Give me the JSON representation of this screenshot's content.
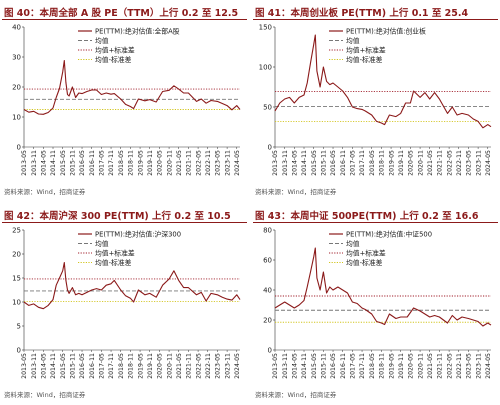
{
  "source_label": "资料来源：Wind，招商证券",
  "colors": {
    "title": "#8b1a1a",
    "pe_line": "#8b1a1a",
    "mean_line": "#777777",
    "plus_sd_line": "#a01e2a",
    "minus_sd_line": "#d2c51e"
  },
  "chart_data": [
    {
      "type": "line",
      "title": "图 40：本周全部 A 股 PE（TTM）上行 0.2 至 12.5",
      "x_ticks": [
        "2013-05",
        "2013-11",
        "2014-05",
        "2014-11",
        "2015-05",
        "2015-11",
        "2016-05",
        "2016-11",
        "2017-05",
        "2017-11",
        "2018-05",
        "2018-11",
        "2019-05",
        "2019-11",
        "2020-05",
        "2020-11",
        "2021-05",
        "2021-11",
        "2022-05",
        "2022-11",
        "2023-05",
        "2023-11",
        "2024-05"
      ],
      "ylim": [
        0,
        40
      ],
      "y_ticks": [
        0,
        10,
        20,
        30,
        40
      ],
      "legend": [
        "PE(TTM):绝对估值:全部A股",
        "均值",
        "均值+标准差",
        "均值-标准差"
      ],
      "mean": 15.9,
      "plus_sd": 19.3,
      "minus_sd": 12.5,
      "pe_points": [
        [
          "2013-05",
          12.5
        ],
        [
          "2013-08",
          11.6
        ],
        [
          "2013-11",
          11.9
        ],
        [
          "2014-02",
          11.0
        ],
        [
          "2014-05",
          10.9
        ],
        [
          "2014-08",
          11.5
        ],
        [
          "2014-11",
          13.0
        ],
        [
          "2015-01",
          16.5
        ],
        [
          "2015-03",
          19.5
        ],
        [
          "2015-05",
          25.0
        ],
        [
          "2015-06",
          28.8
        ],
        [
          "2015-07",
          21.5
        ],
        [
          "2015-08",
          17.5
        ],
        [
          "2015-09",
          17.0
        ],
        [
          "2015-11",
          20.0
        ],
        [
          "2016-01",
          16.5
        ],
        [
          "2016-03",
          18.0
        ],
        [
          "2016-05",
          17.8
        ],
        [
          "2016-08",
          18.5
        ],
        [
          "2016-11",
          19.0
        ],
        [
          "2017-02",
          19.0
        ],
        [
          "2017-05",
          17.5
        ],
        [
          "2017-08",
          18.0
        ],
        [
          "2017-11",
          17.6
        ],
        [
          "2018-01",
          17.8
        ],
        [
          "2018-05",
          16.0
        ],
        [
          "2018-08",
          14.2
        ],
        [
          "2018-11",
          13.5
        ],
        [
          "2019-01",
          12.8
        ],
        [
          "2019-04",
          16.0
        ],
        [
          "2019-08",
          15.4
        ],
        [
          "2019-11",
          15.8
        ],
        [
          "2020-03",
          15.0
        ],
        [
          "2020-07",
          18.5
        ],
        [
          "2020-11",
          18.9
        ],
        [
          "2021-02",
          20.4
        ],
        [
          "2021-05",
          19.3
        ],
        [
          "2021-08",
          18.0
        ],
        [
          "2021-11",
          18.0
        ],
        [
          "2022-04",
          15.2
        ],
        [
          "2022-07",
          16.0
        ],
        [
          "2022-10",
          14.6
        ],
        [
          "2023-01",
          15.5
        ],
        [
          "2023-05",
          15.2
        ],
        [
          "2023-08",
          14.5
        ],
        [
          "2023-11",
          13.8
        ],
        [
          "2024-02",
          12.4
        ],
        [
          "2024-05",
          13.8
        ],
        [
          "2024-07",
          12.5
        ]
      ]
    },
    {
      "type": "line",
      "title": "图 41：本周创业板 PE(TTM) 上行 0.1 至 25.4",
      "x_ticks": [
        "2013-05",
        "2013-11",
        "2014-05",
        "2014-11",
        "2015-05",
        "2015-11",
        "2016-05",
        "2016-11",
        "2017-05",
        "2017-11",
        "2018-05",
        "2018-11",
        "2019-05",
        "2019-11",
        "2020-05",
        "2020-11",
        "2021-05",
        "2021-11",
        "2022-05",
        "2022-11",
        "2023-05",
        "2023-11",
        "2024-05"
      ],
      "ylim": [
        0,
        150
      ],
      "y_ticks": [
        0,
        50,
        100,
        150
      ],
      "legend": [
        "PE(TTM):绝对估值:创业板",
        "均值",
        "均值+标准差",
        "均值-标准差"
      ],
      "mean": 50.5,
      "plus_sd": 69.5,
      "minus_sd": 32.0,
      "pe_points": [
        [
          "2013-05",
          45
        ],
        [
          "2013-08",
          55
        ],
        [
          "2013-11",
          60
        ],
        [
          "2014-02",
          62
        ],
        [
          "2014-05",
          55
        ],
        [
          "2014-08",
          62
        ],
        [
          "2014-11",
          65
        ],
        [
          "2015-01",
          80
        ],
        [
          "2015-03",
          105
        ],
        [
          "2015-05",
          128
        ],
        [
          "2015-06",
          140
        ],
        [
          "2015-07",
          95
        ],
        [
          "2015-09",
          75
        ],
        [
          "2015-11",
          100
        ],
        [
          "2016-01",
          82
        ],
        [
          "2016-03",
          78
        ],
        [
          "2016-05",
          80
        ],
        [
          "2016-08",
          75
        ],
        [
          "2016-11",
          70
        ],
        [
          "2017-02",
          62
        ],
        [
          "2017-05",
          50
        ],
        [
          "2017-08",
          48
        ],
        [
          "2017-11",
          47
        ],
        [
          "2018-01",
          45
        ],
        [
          "2018-05",
          40
        ],
        [
          "2018-08",
          32
        ],
        [
          "2018-11",
          30
        ],
        [
          "2019-01",
          28
        ],
        [
          "2019-04",
          40
        ],
        [
          "2019-08",
          38
        ],
        [
          "2019-11",
          42
        ],
        [
          "2020-02",
          55
        ],
        [
          "2020-05",
          55
        ],
        [
          "2020-07",
          70
        ],
        [
          "2020-11",
          62
        ],
        [
          "2021-02",
          68
        ],
        [
          "2021-05",
          60
        ],
        [
          "2021-08",
          68
        ],
        [
          "2021-11",
          60
        ],
        [
          "2022-04",
          42
        ],
        [
          "2022-07",
          50
        ],
        [
          "2022-10",
          40
        ],
        [
          "2023-01",
          42
        ],
        [
          "2023-05",
          40
        ],
        [
          "2023-08",
          35
        ],
        [
          "2023-11",
          32
        ],
        [
          "2024-02",
          24
        ],
        [
          "2024-05",
          28
        ],
        [
          "2024-07",
          25.4
        ]
      ]
    },
    {
      "type": "line",
      "title": "图 42：本周沪深 300 PE(TTM) 上行 0.2 至 10.5",
      "x_ticks": [
        "2013-05",
        "2013-11",
        "2014-05",
        "2014-11",
        "2015-05",
        "2015-11",
        "2016-05",
        "2016-11",
        "2017-05",
        "2017-11",
        "2018-05",
        "2018-11",
        "2019-05",
        "2019-11",
        "2020-05",
        "2020-11",
        "2021-05",
        "2021-11",
        "2022-05",
        "2022-11",
        "2023-05",
        "2023-11",
        "2024-05"
      ],
      "ylim": [
        0,
        25
      ],
      "y_ticks": [
        0,
        5,
        10,
        15,
        20,
        25
      ],
      "legend": [
        "PE(TTM):绝对估值:沪深300",
        "均值",
        "均值+标准差",
        "均值-标准差"
      ],
      "mean": 12.3,
      "plus_sd": 14.8,
      "minus_sd": 10.1,
      "pe_points": [
        [
          "2013-05",
          10.0
        ],
        [
          "2013-08",
          9.3
        ],
        [
          "2013-11",
          9.6
        ],
        [
          "2014-02",
          8.9
        ],
        [
          "2014-05",
          8.6
        ],
        [
          "2014-08",
          9.3
        ],
        [
          "2014-11",
          10.5
        ],
        [
          "2015-01",
          13.5
        ],
        [
          "2015-03",
          15.0
        ],
        [
          "2015-05",
          16.5
        ],
        [
          "2015-06",
          18.2
        ],
        [
          "2015-07",
          14.5
        ],
        [
          "2015-08",
          12.5
        ],
        [
          "2015-09",
          11.8
        ],
        [
          "2015-11",
          13.0
        ],
        [
          "2016-01",
          11.5
        ],
        [
          "2016-03",
          11.8
        ],
        [
          "2016-05",
          11.5
        ],
        [
          "2016-08",
          12.0
        ],
        [
          "2016-11",
          12.5
        ],
        [
          "2017-02",
          12.8
        ],
        [
          "2017-05",
          12.5
        ],
        [
          "2017-08",
          13.5
        ],
        [
          "2017-11",
          13.8
        ],
        [
          "2018-01",
          14.5
        ],
        [
          "2018-05",
          12.5
        ],
        [
          "2018-08",
          11.3
        ],
        [
          "2018-11",
          10.8
        ],
        [
          "2019-01",
          10.0
        ],
        [
          "2019-04",
          12.5
        ],
        [
          "2019-08",
          11.5
        ],
        [
          "2019-11",
          11.8
        ],
        [
          "2020-03",
          11.0
        ],
        [
          "2020-07",
          13.5
        ],
        [
          "2020-11",
          14.8
        ],
        [
          "2021-02",
          16.5
        ],
        [
          "2021-05",
          14.5
        ],
        [
          "2021-08",
          13.0
        ],
        [
          "2021-11",
          13.0
        ],
        [
          "2022-04",
          11.5
        ],
        [
          "2022-07",
          12.0
        ],
        [
          "2022-10",
          10.2
        ],
        [
          "2023-01",
          11.8
        ],
        [
          "2023-05",
          11.5
        ],
        [
          "2023-08",
          11.0
        ],
        [
          "2023-11",
          10.6
        ],
        [
          "2024-02",
          10.4
        ],
        [
          "2024-05",
          11.5
        ],
        [
          "2024-07",
          10.5
        ]
      ]
    },
    {
      "type": "line",
      "title": "图 43：本周中证 500PE(TTM) 上行 0.2 至 16.6",
      "x_ticks": [
        "2013-05",
        "2013-11",
        "2014-05",
        "2014-11",
        "2015-05",
        "2015-11",
        "2016-05",
        "2016-11",
        "2017-05",
        "2017-11",
        "2018-05",
        "2018-11",
        "2019-05",
        "2019-11",
        "2020-05",
        "2020-11",
        "2021-05",
        "2021-11",
        "2022-05",
        "2022-11",
        "2023-05",
        "2023-11",
        "2024-05"
      ],
      "ylim": [
        0,
        80
      ],
      "y_ticks": [
        0,
        20,
        40,
        60,
        80
      ],
      "legend": [
        "PE(TTM):绝对估值:中证500",
        "均值",
        "均值+标准差",
        "均值-标准差"
      ],
      "mean": 26.5,
      "plus_sd": 36.0,
      "minus_sd": 18.5,
      "pe_points": [
        [
          "2013-05",
          28
        ],
        [
          "2013-08",
          30
        ],
        [
          "2013-11",
          32
        ],
        [
          "2014-02",
          30
        ],
        [
          "2014-05",
          28
        ],
        [
          "2014-08",
          30
        ],
        [
          "2014-11",
          33
        ],
        [
          "2015-01",
          42
        ],
        [
          "2015-03",
          52
        ],
        [
          "2015-05",
          62
        ],
        [
          "2015-06",
          68
        ],
        [
          "2015-07",
          48
        ],
        [
          "2015-09",
          40
        ],
        [
          "2015-11",
          52
        ],
        [
          "2016-01",
          38
        ],
        [
          "2016-03",
          42
        ],
        [
          "2016-05",
          40
        ],
        [
          "2016-08",
          42
        ],
        [
          "2016-11",
          40
        ],
        [
          "2017-02",
          38
        ],
        [
          "2017-05",
          32
        ],
        [
          "2017-08",
          31
        ],
        [
          "2017-11",
          28
        ],
        [
          "2018-01",
          27
        ],
        [
          "2018-05",
          24
        ],
        [
          "2018-08",
          19
        ],
        [
          "2018-11",
          18
        ],
        [
          "2019-01",
          17
        ],
        [
          "2019-04",
          24
        ],
        [
          "2019-08",
          21
        ],
        [
          "2019-11",
          22
        ],
        [
          "2020-03",
          22
        ],
        [
          "2020-07",
          28
        ],
        [
          "2020-11",
          26
        ],
        [
          "2021-02",
          24
        ],
        [
          "2021-05",
          22
        ],
        [
          "2021-08",
          23
        ],
        [
          "2021-11",
          22
        ],
        [
          "2022-04",
          18
        ],
        [
          "2022-07",
          23
        ],
        [
          "2022-10",
          20
        ],
        [
          "2023-01",
          22
        ],
        [
          "2023-05",
          21
        ],
        [
          "2023-08",
          20
        ],
        [
          "2023-11",
          19
        ],
        [
          "2024-02",
          16
        ],
        [
          "2024-05",
          18
        ],
        [
          "2024-07",
          16.6
        ]
      ]
    }
  ]
}
